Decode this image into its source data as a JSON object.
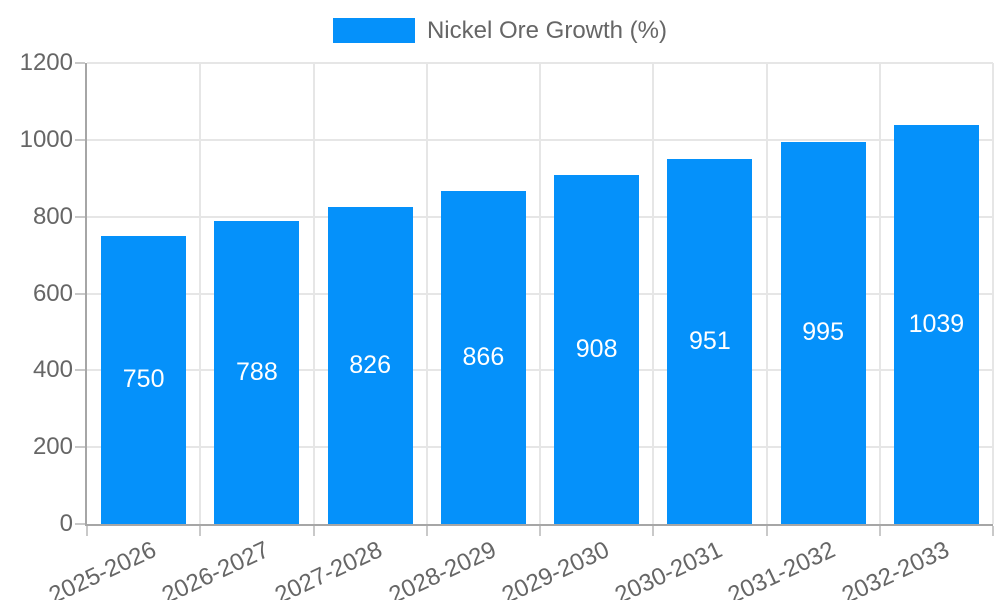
{
  "chart_data": {
    "type": "bar",
    "title": "Nickel Ore Growth (%)",
    "legend": {
      "position": "top",
      "label": "Nickel Ore Growth (%)"
    },
    "categories": [
      "2025-2026",
      "2026-2027",
      "2027-2028",
      "2028-2029",
      "2029-2030",
      "2030-2031",
      "2031-2032",
      "2032-2033"
    ],
    "series": [
      {
        "name": "Nickel Ore Growth (%)",
        "values": [
          750,
          788,
          826,
          866,
          908,
          951,
          995,
          1039
        ]
      }
    ],
    "bar_value_labels": [
      "750",
      "788",
      "826",
      "866",
      "908",
      "951",
      "995",
      "1039"
    ],
    "xlabel": "",
    "ylabel": "",
    "ylim": [
      0,
      1200
    ],
    "yticks": [
      0,
      200,
      400,
      600,
      800,
      1000,
      1200
    ],
    "grid": true,
    "colors": {
      "bar": "#0591fa",
      "grid": "#e6e6e6",
      "axis": "#a6a6a6",
      "tick": "#c9c9c9",
      "axis_text": "#666666",
      "bar_label_text": "#ffffff",
      "background": "#ffffff"
    }
  }
}
